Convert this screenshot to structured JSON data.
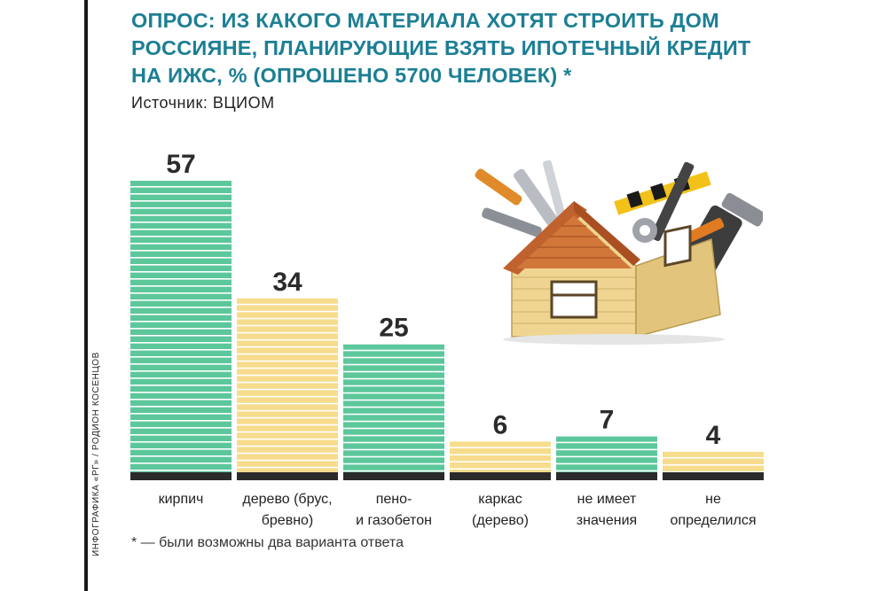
{
  "title": "ОПРОС: ИЗ КАКОГО МАТЕРИАЛА ХОТЯТ СТРОИТЬ ДОМ РОССИЯНЕ, ПЛАНИРУЮЩИЕ ВЗЯТЬ ИПОТЕЧНЫЙ КРЕДИТ НА ИЖС, % (ОПРОШЕНО 5700 ЧЕЛОВЕК) *",
  "source": "Источник: ВЦИОМ",
  "credit": "ИНФОГРАФИКА «РГ» / РОДИОН КОСЕНЦОВ",
  "footnote": "* — были возможны два варианта ответа",
  "colors": {
    "green": "#5cc79b",
    "yellow": "#f6dc8c",
    "title": "#1c7f94",
    "baseline": "#2b2b2b"
  },
  "chart_data": {
    "type": "bar",
    "categories": [
      [
        "кирпич"
      ],
      [
        "дерево (брус,",
        "бревно)"
      ],
      [
        "пено-",
        "и газобетон"
      ],
      [
        "каркас",
        "(дерево)"
      ],
      [
        "не имеет",
        "значения"
      ],
      [
        "не",
        "определился"
      ]
    ],
    "values": [
      57,
      34,
      25,
      6,
      7,
      4
    ],
    "bar_colors": [
      "green",
      "yellow",
      "green",
      "yellow",
      "green",
      "yellow"
    ],
    "ylim": [
      0,
      57
    ]
  }
}
